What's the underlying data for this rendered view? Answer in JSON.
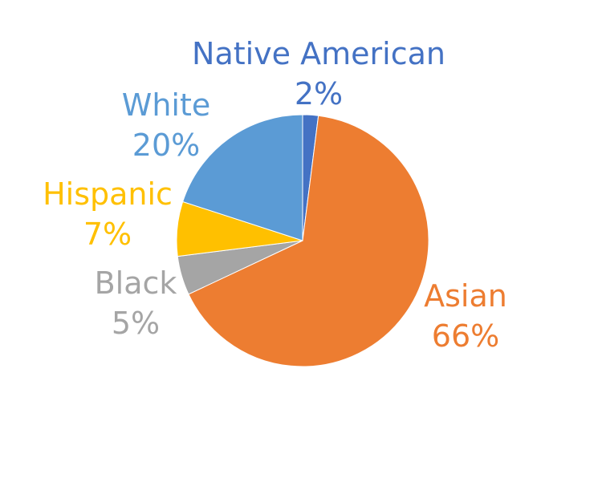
{
  "chart_data": {
    "type": "pie",
    "title": "",
    "slices": [
      {
        "label": "Native American",
        "value": 2,
        "percent_label": "2%",
        "color": "#4472C4"
      },
      {
        "label": "Asian",
        "value": 66,
        "percent_label": "66%",
        "color": "#ED7D31"
      },
      {
        "label": "Black",
        "value": 5,
        "percent_label": "5%",
        "color": "#A5A5A5"
      },
      {
        "label": "Hispanic",
        "value": 7,
        "percent_label": "7%",
        "color": "#FFC000"
      },
      {
        "label": "White",
        "value": 20,
        "percent_label": "20%",
        "color": "#5B9BD5"
      }
    ],
    "start_angle_deg": 0,
    "direction": "clockwise",
    "legend": "none"
  }
}
